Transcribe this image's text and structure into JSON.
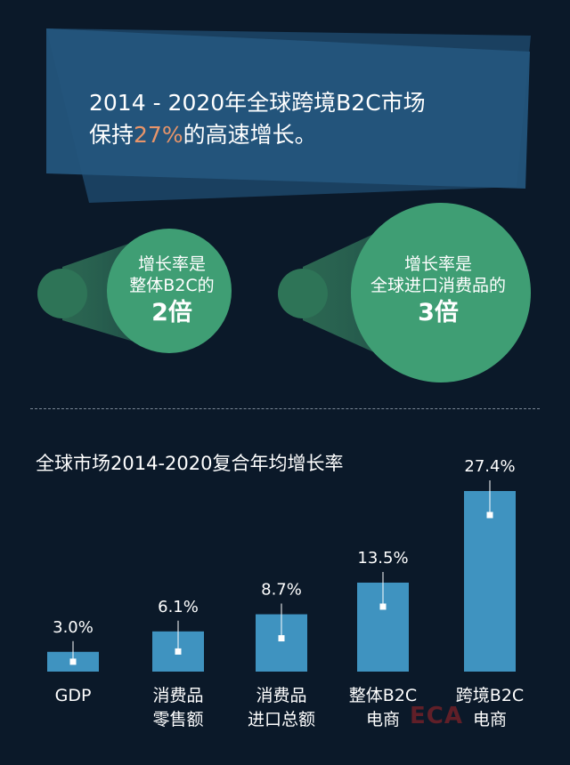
{
  "header": {
    "title_line1": "2014 - 2020年全球跨境B2C市场",
    "title_line2_prefix": "保持",
    "title_highlight": "27%",
    "title_line2_suffix": "的高速增长。"
  },
  "callouts": [
    {
      "line1": "增长率是",
      "line2": "整体B2C的",
      "multiple": "2倍"
    },
    {
      "line1": "增长率是",
      "line2": "全球进口消费品的",
      "multiple": "3倍"
    }
  ],
  "chart_data": {
    "type": "bar",
    "title": "全球市场2014-2020复合年均增长率",
    "categories": [
      "GDP",
      "消费品\n零售额",
      "消费品\n进口总额",
      "整体B2C\n电商",
      "跨境B2C\n电商"
    ],
    "values": [
      3.0,
      6.1,
      8.7,
      13.5,
      27.4
    ],
    "value_labels": [
      "3.0%",
      "6.1%",
      "8.7%",
      "13.5%",
      "27.4%"
    ],
    "unit": "%",
    "ylim": [
      0,
      28
    ],
    "grid": false,
    "legend": "none"
  },
  "watermark": "ECA",
  "colors": {
    "background": "#0b1929",
    "banner": "#1e4a6e",
    "highlight": "#e8956a",
    "circle": "#3f9e74",
    "bar": "#3f93c0"
  }
}
